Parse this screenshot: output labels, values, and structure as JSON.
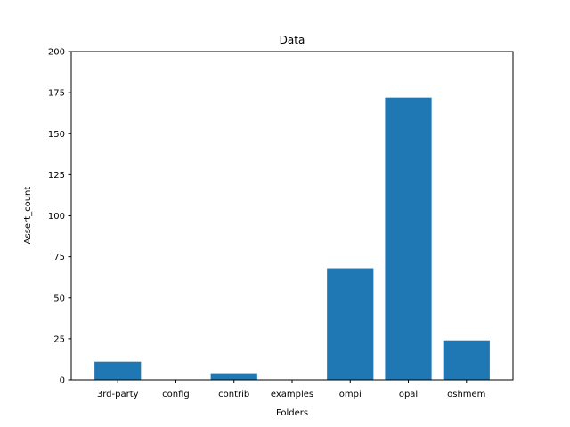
{
  "chart_data": {
    "type": "bar",
    "title": "Data",
    "xlabel": "Folders",
    "ylabel": "Assert_count",
    "categories": [
      "3rd-party",
      "config",
      "contrib",
      "examples",
      "ompi",
      "opal",
      "oshmem"
    ],
    "values": [
      11,
      0,
      4,
      0,
      68,
      172,
      24
    ],
    "ylim": [
      0,
      200
    ],
    "yticks": [
      0,
      25,
      50,
      75,
      100,
      125,
      150,
      175,
      200
    ],
    "grid": false,
    "colors": {
      "bar": "#1f77b4"
    }
  }
}
